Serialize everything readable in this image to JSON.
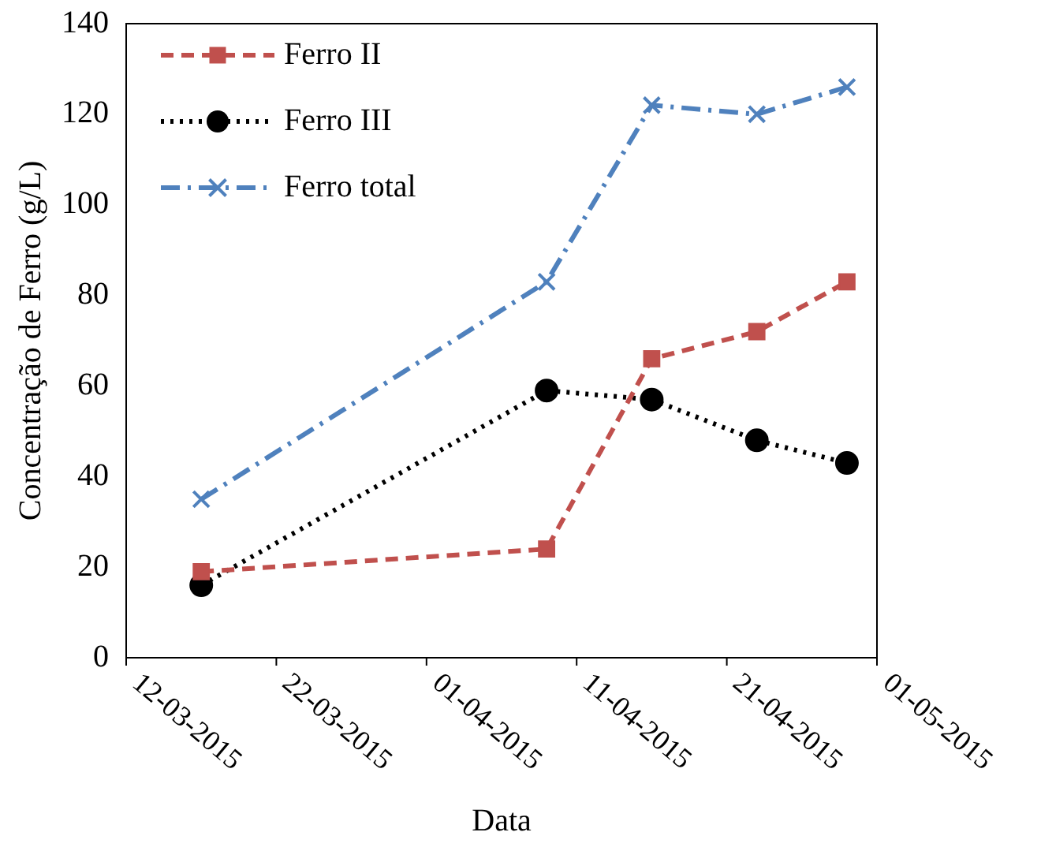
{
  "chart_data": {
    "type": "line",
    "xlabel": "Data",
    "ylabel": "Concentração de Ferro (g/L)",
    "x": [
      "2015-03-17",
      "2015-04-09",
      "2015-04-16",
      "2015-04-23",
      "2015-04-29"
    ],
    "series": [
      {
        "name": "Ferro II",
        "color": "#c0504d",
        "values": [
          19,
          24,
          66,
          72,
          83
        ],
        "marker": "square",
        "line_style": "dashed"
      },
      {
        "name": "Ferro III",
        "color": "#000000",
        "values": [
          16,
          59,
          57,
          48,
          43
        ],
        "marker": "circle",
        "line_style": "dotted"
      },
      {
        "name": "Ferro total",
        "color": "#4f81bd",
        "values": [
          35,
          83,
          122,
          120,
          126
        ],
        "marker": "cross",
        "line_style": "dashdot"
      }
    ],
    "xlim": [
      "2015-03-12",
      "2015-05-01"
    ],
    "xticks": [
      {
        "value": "2015-03-12",
        "label": "12-03-2015"
      },
      {
        "value": "2015-03-22",
        "label": "22-03-2015"
      },
      {
        "value": "2015-04-01",
        "label": "01-04-2015"
      },
      {
        "value": "2015-04-11",
        "label": "11-04-2015"
      },
      {
        "value": "2015-04-21",
        "label": "21-04-2015"
      },
      {
        "value": "2015-05-01",
        "label": "01-05-2015"
      }
    ],
    "ylim": [
      0,
      140
    ],
    "yticks": [
      0,
      20,
      40,
      60,
      80,
      100,
      120,
      140
    ],
    "grid": false,
    "legend": "top left"
  }
}
